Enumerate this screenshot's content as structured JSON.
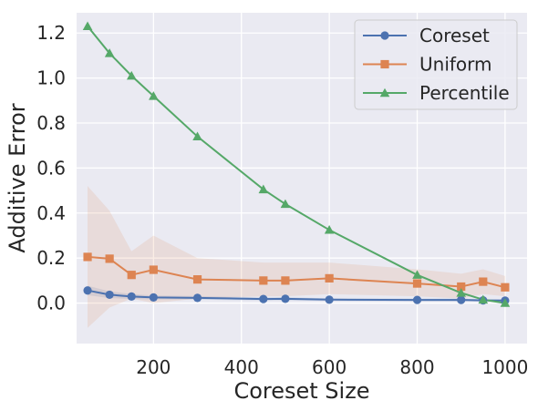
{
  "chart_data": {
    "type": "line",
    "xlabel": "Coreset Size",
    "ylabel": "Additive Error",
    "xlim": [
      25,
      1050
    ],
    "ylim": [
      -0.18,
      1.29
    ],
    "xticks": [
      200,
      400,
      600,
      800,
      1000
    ],
    "yticks": [
      0.0,
      0.2,
      0.4,
      0.6,
      0.8,
      1.0,
      1.2
    ],
    "xtick_labels": [
      "200",
      "400",
      "600",
      "800",
      "1000"
    ],
    "ytick_labels": [
      "0.0",
      "0.2",
      "0.4",
      "0.6",
      "0.8",
      "1.0",
      "1.2"
    ],
    "grid": true,
    "legend": "top-right",
    "series": [
      {
        "name": "Coreset",
        "color": "#4c72b0",
        "marker": "circle",
        "x": [
          50,
          100,
          150,
          200,
          300,
          450,
          500,
          600,
          800,
          900,
          950,
          1000
        ],
        "y": [
          0.056,
          0.037,
          0.029,
          0.025,
          0.023,
          0.018,
          0.019,
          0.015,
          0.014,
          0.014,
          0.012,
          0.011
        ],
        "band_lower": [
          0.035,
          0.022,
          0.018,
          0.016,
          0.015,
          0.011,
          0.012,
          0.009,
          0.008,
          0.008,
          0.007,
          0.006
        ],
        "band_upper": [
          0.077,
          0.052,
          0.04,
          0.034,
          0.031,
          0.025,
          0.026,
          0.021,
          0.02,
          0.02,
          0.017,
          0.016
        ]
      },
      {
        "name": "Uniform",
        "color": "#dd8452",
        "marker": "square",
        "x": [
          50,
          100,
          150,
          200,
          300,
          450,
          500,
          600,
          800,
          900,
          950,
          1000
        ],
        "y": [
          0.205,
          0.197,
          0.125,
          0.148,
          0.105,
          0.1,
          0.1,
          0.11,
          0.087,
          0.073,
          0.095,
          0.07
        ],
        "band_lower": [
          -0.11,
          -0.02,
          0.02,
          0.0,
          0.02,
          0.03,
          0.03,
          0.04,
          0.03,
          0.02,
          0.04,
          0.03
        ],
        "band_upper": [
          0.52,
          0.41,
          0.23,
          0.3,
          0.2,
          0.18,
          0.18,
          0.18,
          0.15,
          0.13,
          0.15,
          0.12
        ]
      },
      {
        "name": "Percentile",
        "color": "#55a868",
        "marker": "triangle",
        "x": [
          50,
          100,
          150,
          200,
          300,
          450,
          500,
          600,
          800,
          900,
          950,
          1000
        ],
        "y": [
          1.23,
          1.11,
          1.01,
          0.92,
          0.74,
          0.505,
          0.44,
          0.325,
          0.125,
          0.045,
          0.015,
          0.0
        ]
      }
    ]
  }
}
